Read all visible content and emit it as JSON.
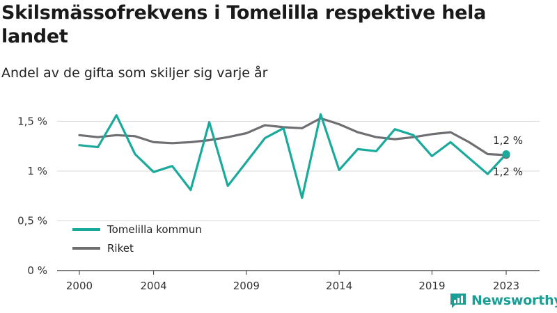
{
  "header": {
    "title": "Skilsmässofrekvens i Tomelilla respektive hela landet",
    "subtitle": "Andel av de gifta som skiljer sig varje år"
  },
  "brand": {
    "name": "Newsworthy",
    "icon": "newsworthy-logo-icon",
    "color": "#1b9e96"
  },
  "chart_data": {
    "type": "line",
    "title": "Skilsmässofrekvens i Tomelilla respektive hela landet",
    "subtitle": "Andel av de gifta som skiljer sig varje år",
    "xlabel": "",
    "ylabel": "",
    "x": [
      2000,
      2001,
      2002,
      2003,
      2004,
      2005,
      2006,
      2007,
      2008,
      2009,
      2010,
      2011,
      2012,
      2013,
      2014,
      2015,
      2016,
      2017,
      2018,
      2019,
      2020,
      2021,
      2022,
      2023
    ],
    "x_ticks": [
      2000,
      2004,
      2009,
      2014,
      2019,
      2023
    ],
    "x_tick_labels": [
      "2000",
      "2004",
      "2009",
      "2014",
      "2019",
      "2023"
    ],
    "ylim": [
      0,
      1.6
    ],
    "y_ticks": [
      0,
      0.5,
      1,
      1.5
    ],
    "y_tick_labels": [
      "0 %",
      "0,5 %",
      "1 %",
      "1,5 %"
    ],
    "grid": true,
    "legend_position": "bottom-left",
    "series": [
      {
        "name": "Tomelilla kommun",
        "color": "#1aaa9c",
        "values": [
          1.26,
          1.24,
          1.56,
          1.17,
          0.99,
          1.05,
          0.81,
          1.49,
          0.85,
          1.09,
          1.33,
          1.43,
          0.73,
          1.57,
          1.01,
          1.22,
          1.2,
          1.42,
          1.36,
          1.15,
          1.29,
          1.13,
          0.97,
          1.17
        ],
        "end_label": "1,2 %"
      },
      {
        "name": "Riket",
        "color": "#6f6e73",
        "values": [
          1.36,
          1.34,
          1.36,
          1.35,
          1.29,
          1.28,
          1.29,
          1.31,
          1.34,
          1.38,
          1.46,
          1.44,
          1.43,
          1.53,
          1.47,
          1.39,
          1.34,
          1.32,
          1.34,
          1.37,
          1.39,
          1.29,
          1.17,
          1.16
        ],
        "end_label": "1,2 %"
      }
    ]
  }
}
